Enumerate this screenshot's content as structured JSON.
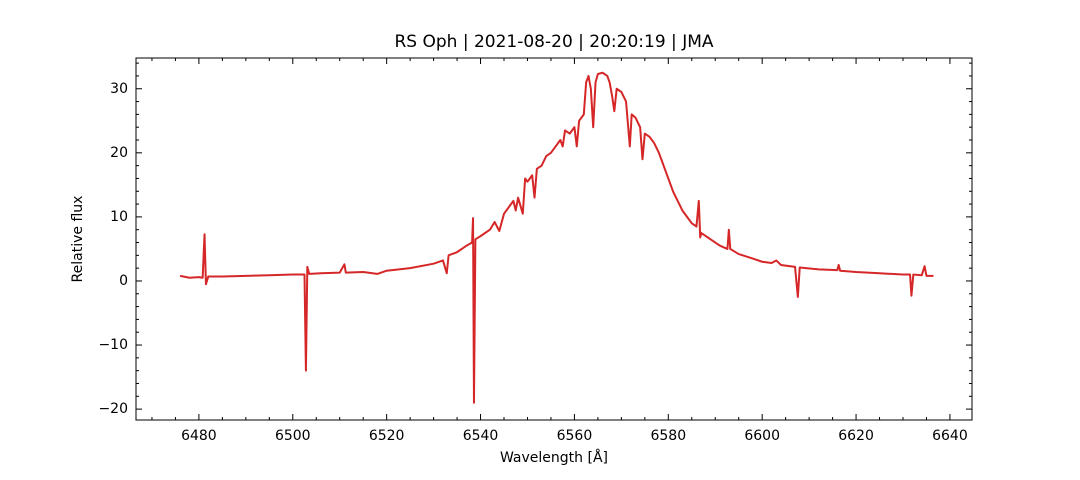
{
  "chart_data": {
    "type": "line",
    "title": "RS Oph | 2021-08-20 | 20:20:19 | JMA",
    "xlabel": "Wavelength [Å]",
    "ylabel": "Relative flux",
    "xlim": [
      6466.6,
      6644.7
    ],
    "ylim": [
      -21.7,
      34.8
    ],
    "xticks": [
      6480,
      6500,
      6520,
      6540,
      6560,
      6580,
      6600,
      6620,
      6640
    ],
    "yticks": [
      {
        "value": -20,
        "label": "−20"
      },
      {
        "value": -10,
        "label": "−10"
      },
      0,
      10,
      20,
      30
    ],
    "xticks_minor": [
      6470,
      6475,
      6485,
      6490,
      6495,
      6505,
      6510,
      6515,
      6525,
      6530,
      6535,
      6545,
      6550,
      6555,
      6565,
      6570,
      6575,
      6585,
      6590,
      6595,
      6605,
      6610,
      6615,
      6625,
      6630,
      6635
    ],
    "yticks_minor": [
      -18,
      -16,
      -14,
      -12,
      -8,
      -6,
      -4,
      -2,
      2,
      4,
      6,
      8,
      12,
      14,
      16,
      18,
      22,
      24,
      26,
      28,
      32,
      34
    ],
    "x": [
      6476,
      6478,
      6480,
      6480.8,
      6481.2,
      6481.5,
      6482,
      6485,
      6490,
      6495,
      6500,
      6502.5,
      6502.8,
      6503.1,
      6503.5,
      6506,
      6510,
      6511,
      6511.3,
      6515,
      6518,
      6520,
      6525,
      6530,
      6532,
      6532.8,
      6533.2,
      6535,
      6537,
      6538.2,
      6538.4,
      6538.6,
      6538.9,
      6540,
      6542,
      6543,
      6544,
      6545,
      6546,
      6547,
      6547.5,
      6548,
      6549,
      6549.5,
      6550,
      6551,
      6551.5,
      6552,
      6553,
      6554,
      6555,
      6556,
      6557,
      6557.5,
      6558,
      6559,
      6560,
      6560.5,
      6561,
      6562,
      6562.5,
      6563,
      6563.5,
      6564,
      6564.5,
      6565,
      6566,
      6567,
      6567.5,
      6568,
      6568.5,
      6569,
      6570,
      6571,
      6571.8,
      6572.2,
      6573,
      6574,
      6574.5,
      6575,
      6576,
      6577,
      6578,
      6579,
      6580,
      6581,
      6582,
      6583,
      6584,
      6585,
      6586,
      6586.5,
      6586.8,
      6587,
      6589,
      6591,
      6592.6,
      6592.9,
      6593.2,
      6595,
      6598,
      6600,
      6602,
      6603,
      6604,
      6607,
      6607.6,
      6608,
      6612,
      6616,
      6616.3,
      6616.6,
      6620,
      6625,
      6630,
      6631.5,
      6631.8,
      6632.2,
      6634,
      6634.6,
      6635,
      6636.5
    ],
    "series": [
      {
        "name": "RS Oph",
        "color": "#d62728",
        "values": [
          0.8,
          0.5,
          0.6,
          0.5,
          7.3,
          -0.5,
          0.7,
          0.7,
          0.8,
          0.9,
          1.0,
          1.0,
          -14,
          2.2,
          1.1,
          1.2,
          1.3,
          2.6,
          1.3,
          1.4,
          1.1,
          1.6,
          2.0,
          2.7,
          3.2,
          1.2,
          4.0,
          4.5,
          5.5,
          6.0,
          9.8,
          -19,
          6.5,
          7.0,
          8.0,
          9.2,
          7.8,
          10.5,
          11.5,
          12.5,
          11,
          13,
          10.5,
          16,
          15.5,
          16.5,
          13,
          17.5,
          18,
          19.5,
          20,
          21,
          22,
          21,
          23.5,
          23,
          24,
          21,
          25,
          26,
          31,
          32,
          30,
          24,
          31,
          32.3,
          32.5,
          32,
          31,
          29,
          26.5,
          30,
          29.5,
          28,
          21,
          26,
          25.5,
          24,
          19,
          23,
          22.5,
          21.5,
          20,
          18,
          16,
          14,
          12.5,
          11,
          10,
          9,
          8.5,
          12.5,
          6.8,
          7.5,
          6.5,
          5.5,
          5,
          8,
          5,
          4.2,
          3.5,
          3,
          2.8,
          3.2,
          2.5,
          2.2,
          -2.5,
          2.1,
          1.8,
          1.7,
          2.5,
          1.6,
          1.4,
          1.2,
          1.0,
          1.0,
          -2.3,
          1.0,
          0.9,
          2.3,
          0.8,
          0.8
        ]
      }
    ]
  }
}
